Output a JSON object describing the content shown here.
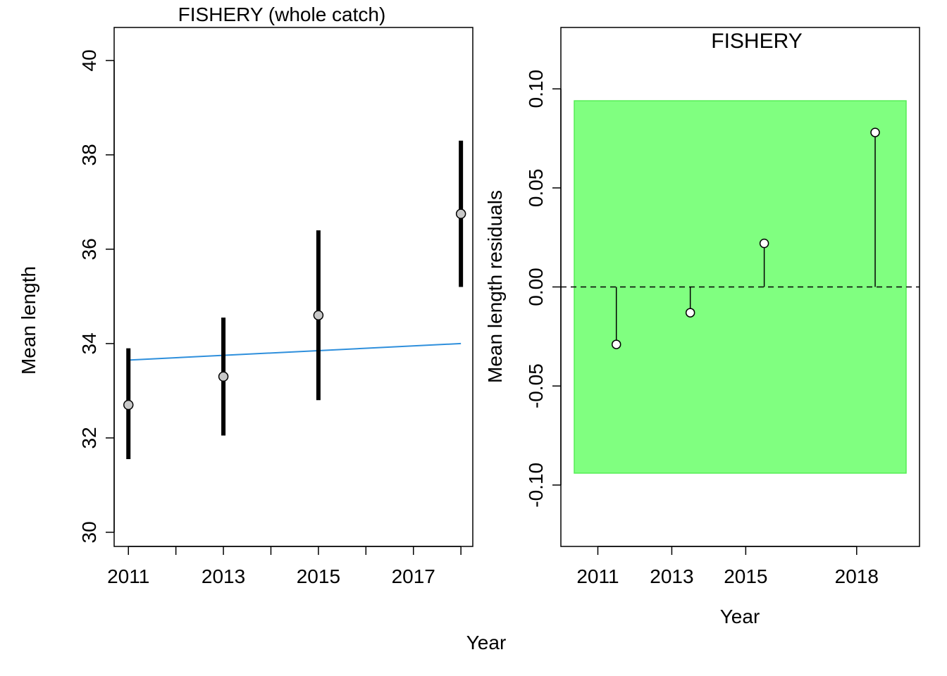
{
  "figure": {
    "shared_xlabel": "Year"
  },
  "chart_data": [
    {
      "type": "scatter",
      "title": "FISHERY (whole catch)",
      "xlabel": "",
      "ylabel": "Mean length",
      "xlim": [
        2010.7,
        2018.25
      ],
      "ylim": [
        29.7,
        40.7
      ],
      "x_ticks": [
        2011,
        2012,
        2013,
        2014,
        2015,
        2016,
        2017,
        2018
      ],
      "x_tick_labels": [
        "2011",
        "",
        "2013",
        "",
        "2015",
        "",
        "2017",
        ""
      ],
      "y_ticks": [
        30,
        32,
        34,
        36,
        38,
        40
      ],
      "y_tick_labels": [
        "30",
        "32",
        "34",
        "36",
        "38",
        "40"
      ],
      "points": [
        {
          "x": 2011,
          "y": 32.7,
          "lower": 31.55,
          "upper": 33.9
        },
        {
          "x": 2013,
          "y": 33.3,
          "lower": 32.05,
          "upper": 34.55
        },
        {
          "x": 2015,
          "y": 34.6,
          "lower": 32.8,
          "upper": 36.4
        },
        {
          "x": 2018,
          "y": 36.75,
          "lower": 35.2,
          "upper": 38.3
        }
      ],
      "trend_line": {
        "x": [
          2011,
          2018
        ],
        "y": [
          33.65,
          34.0
        ],
        "color": "#2e8fdc"
      },
      "point_color": "#c8c8c8",
      "errorbar_color": "#000000",
      "grid": false
    },
    {
      "type": "scatter",
      "title": "FISHERY",
      "xlabel": "Year",
      "ylabel": "Mean length residuals",
      "xlim": [
        2010.0,
        2019.7
      ],
      "ylim": [
        -0.131,
        0.131
      ],
      "x_ticks": [
        2011,
        2013,
        2015,
        2018
      ],
      "x_tick_labels": [
        "2011",
        "2013",
        "2015",
        "2018"
      ],
      "y_ticks": [
        -0.1,
        -0.05,
        0.0,
        0.05,
        0.1
      ],
      "y_tick_labels": [
        "-0.10",
        "-0.05",
        "0.00",
        "0.05",
        "0.10"
      ],
      "residuals": [
        {
          "x": 2011.5,
          "y": -0.029
        },
        {
          "x": 2013.5,
          "y": -0.013
        },
        {
          "x": 2015.5,
          "y": 0.022
        },
        {
          "x": 2018.5,
          "y": 0.078
        }
      ],
      "band": {
        "lower": -0.094,
        "upper": 0.094,
        "color": "#80ff80",
        "border": "#55ee55"
      },
      "zero_line": 0,
      "point_color": "#ffffff",
      "grid": false
    }
  ]
}
